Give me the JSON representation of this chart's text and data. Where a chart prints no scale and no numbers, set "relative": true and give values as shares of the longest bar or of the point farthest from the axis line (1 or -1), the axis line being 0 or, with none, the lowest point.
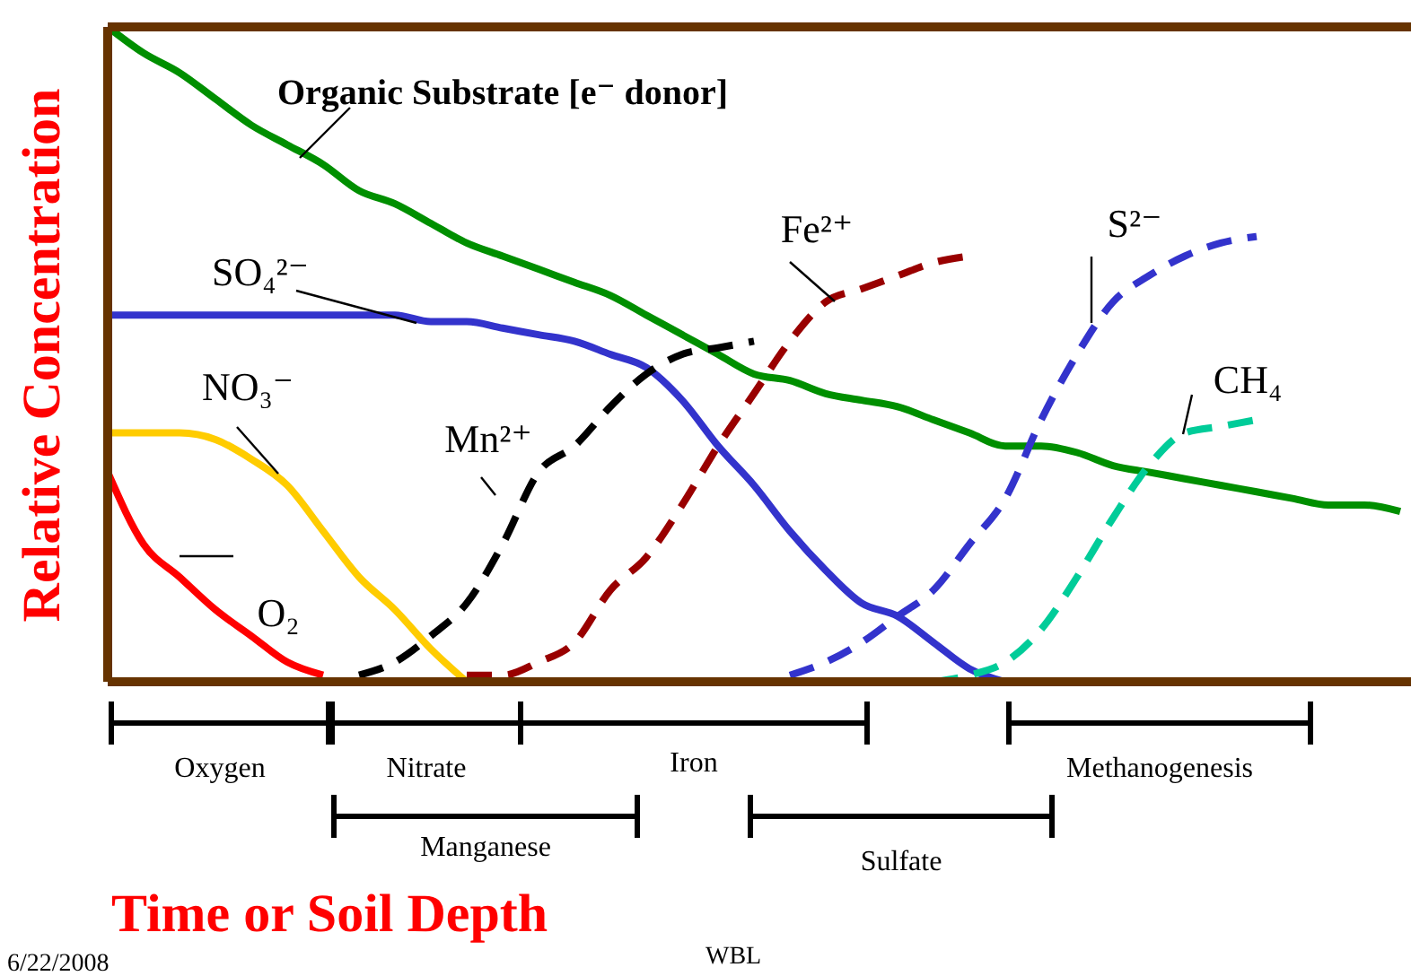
{
  "chart_data": {
    "type": "line",
    "relative": true,
    "ylabel": "Relative Concentration",
    "xlabel": "Time or Soil Depth",
    "categories": [
      null,
      null,
      null,
      null,
      null,
      null,
      null,
      null,
      null,
      null,
      null,
      null,
      null,
      null,
      null,
      null,
      null,
      null,
      null,
      null,
      null,
      null,
      null,
      null,
      null,
      null,
      null,
      null,
      null,
      null,
      null,
      null,
      null,
      null,
      null,
      null,
      null
    ],
    "series": [
      {
        "name": "Organic Substrate [e⁻ donor]",
        "color": "#008f00",
        "line_style": "solid",
        "values": [
          1.0,
          0.96,
          0.93,
          0.89,
          0.85,
          0.82,
          0.79,
          0.75,
          0.73,
          0.7,
          0.67,
          0.65,
          0.63,
          0.61,
          0.59,
          0.56,
          0.53,
          0.5,
          0.47,
          0.46,
          0.44,
          0.43,
          0.42,
          0.4,
          0.38,
          0.36,
          0.36,
          0.35,
          0.33,
          0.32,
          0.31,
          0.3,
          0.29,
          0.28,
          0.27,
          0.27,
          0.26
        ]
      },
      {
        "name": "SO₄²⁻",
        "color": "#3333cc",
        "line_style": "solid",
        "values": [
          0.56,
          0.56,
          0.56,
          0.56,
          0.56,
          0.56,
          0.56,
          0.56,
          0.56,
          0.55,
          0.55,
          0.54,
          0.53,
          0.52,
          0.5,
          0.48,
          0.43,
          0.36,
          0.3,
          0.23,
          0.17,
          0.12,
          0.1,
          0.06,
          0.02,
          0.0,
          null,
          null,
          null,
          null,
          null,
          null,
          null,
          null,
          null,
          null,
          null
        ]
      },
      {
        "name": "NO₃⁻",
        "color": "#ffcc00",
        "line_style": "solid",
        "values": [
          0.38,
          0.38,
          0.38,
          0.37,
          0.34,
          0.3,
          0.23,
          0.16,
          0.11,
          0.05,
          0.0,
          null,
          null,
          null,
          null,
          null,
          null,
          null,
          null,
          null,
          null,
          null,
          null,
          null,
          null,
          null,
          null,
          null,
          null,
          null,
          null,
          null,
          null,
          null,
          null,
          null,
          null
        ]
      },
      {
        "name": "O₂",
        "color": "#ff0000",
        "line_style": "solid",
        "values": [
          0.32,
          0.21,
          0.16,
          0.11,
          0.07,
          0.03,
          0.01,
          null,
          null,
          null,
          null,
          null,
          null,
          null,
          null,
          null,
          null,
          null,
          null,
          null,
          null,
          null,
          null,
          null,
          null,
          null,
          null,
          null,
          null,
          null,
          null,
          null,
          null,
          null,
          null,
          null,
          null
        ]
      },
      {
        "name": "Mn²⁺",
        "color": "#000000",
        "line_style": "dashed",
        "values": [
          null,
          null,
          null,
          null,
          null,
          null,
          null,
          0.01,
          0.03,
          0.07,
          0.12,
          0.21,
          0.32,
          0.36,
          0.42,
          0.47,
          0.5,
          0.51,
          0.52,
          null,
          null,
          null,
          null,
          null,
          null,
          null,
          null,
          null,
          null,
          null,
          null,
          null,
          null,
          null,
          null,
          null,
          null
        ]
      },
      {
        "name": "Fe²⁺",
        "color": "#990000",
        "line_style": "dashed",
        "values": [
          null,
          null,
          null,
          null,
          null,
          null,
          null,
          null,
          null,
          null,
          0.01,
          0.01,
          0.03,
          0.06,
          0.14,
          0.19,
          0.27,
          0.36,
          0.44,
          0.52,
          0.58,
          0.6,
          0.62,
          0.64,
          0.65,
          null,
          null,
          null,
          null,
          null,
          null,
          null,
          null,
          null,
          null,
          null,
          null
        ]
      },
      {
        "name": "S²⁻",
        "color": "#3333cc",
        "line_style": "dashed",
        "values": [
          null,
          null,
          null,
          null,
          null,
          null,
          null,
          null,
          null,
          null,
          null,
          null,
          null,
          null,
          null,
          null,
          null,
          null,
          null,
          0.01,
          0.03,
          0.06,
          0.1,
          0.14,
          0.21,
          0.28,
          0.4,
          0.5,
          0.58,
          0.62,
          0.65,
          0.67,
          0.68,
          null,
          null,
          null,
          null
        ]
      },
      {
        "name": "CH₄",
        "color": "#00cc99",
        "line_style": "dashed",
        "values": [
          null,
          null,
          null,
          null,
          null,
          null,
          null,
          null,
          null,
          null,
          null,
          null,
          null,
          null,
          null,
          null,
          null,
          null,
          null,
          null,
          null,
          null,
          null,
          0.0,
          0.01,
          0.03,
          0.08,
          0.16,
          0.25,
          0.33,
          0.38,
          0.39,
          0.4,
          null,
          null,
          null,
          null
        ]
      }
    ],
    "annotations": [
      "Oxygen",
      "Nitrate",
      "Iron",
      "Methanogenesis",
      "Manganese",
      "Sulfate",
      "6/22/2008",
      "WBL"
    ]
  }
}
